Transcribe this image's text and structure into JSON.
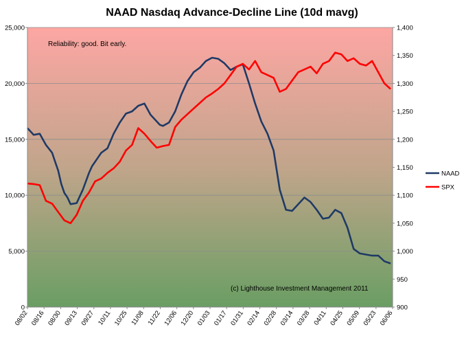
{
  "chart_data": {
    "type": "line",
    "title": "NAAD Nasdaq Advance-Decline Line (10d mavg)",
    "annotation_top": "Reliability: good. Bit early.",
    "annotation_bottom": "(c) Lighthouse Investment Management 2011",
    "x_tick_labels": [
      "08/02",
      "08/16",
      "08/30",
      "09/13",
      "09/27",
      "10/11",
      "10/25",
      "11/08",
      "11/22",
      "12/06",
      "12/20",
      "01/03",
      "01/17",
      "01/31",
      "02/14",
      "02/28",
      "03/14",
      "03/28",
      "04/11",
      "04/25",
      "05/09",
      "05/23",
      "06/06"
    ],
    "y_left": {
      "min": 0,
      "max": 25000,
      "ticks": [
        "0",
        "5,000",
        "10,000",
        "15,000",
        "20,000",
        "25,000"
      ],
      "tick_values": [
        0,
        5000,
        10000,
        15000,
        20000,
        25000
      ]
    },
    "y_right": {
      "min": 900,
      "max": 1400,
      "ticks": [
        "900",
        "950",
        "1,000",
        "1,050",
        "1,100",
        "1,150",
        "1,200",
        "1,250",
        "1,300",
        "1,350",
        "1,400"
      ],
      "tick_values": [
        900,
        950,
        1000,
        1050,
        1100,
        1150,
        1200,
        1250,
        1300,
        1350,
        1400
      ]
    },
    "background_gradient": {
      "top": "#fda6a3",
      "bottom": "#6a9e63"
    },
    "grid": true,
    "legend_position": "right",
    "series": [
      {
        "name": "NAAD",
        "axis": "left",
        "color": "#1f3a66",
        "points": [
          [
            0,
            16000
          ],
          [
            1,
            15400
          ],
          [
            2,
            15500
          ],
          [
            3,
            14500
          ],
          [
            4,
            13800
          ],
          [
            4.5,
            13000
          ],
          [
            5,
            12200
          ],
          [
            5.5,
            11000
          ],
          [
            6,
            10200
          ],
          [
            6.5,
            9800
          ],
          [
            7,
            9200
          ],
          [
            8,
            9300
          ],
          [
            9,
            10500
          ],
          [
            10,
            12000
          ],
          [
            10.5,
            12600
          ],
          [
            11,
            13000
          ],
          [
            11.5,
            13400
          ],
          [
            12,
            13800
          ],
          [
            13,
            14200
          ],
          [
            14,
            15500
          ],
          [
            15,
            16500
          ],
          [
            16,
            17300
          ],
          [
            17,
            17500
          ],
          [
            18,
            18000
          ],
          [
            19,
            18200
          ],
          [
            20,
            17200
          ],
          [
            21,
            16600
          ],
          [
            21.5,
            16300
          ],
          [
            22,
            16200
          ],
          [
            23,
            16500
          ],
          [
            24,
            17500
          ],
          [
            25,
            19000
          ],
          [
            26,
            20200
          ],
          [
            27,
            21000
          ],
          [
            28,
            21400
          ],
          [
            29,
            22000
          ],
          [
            30,
            22300
          ],
          [
            31,
            22200
          ],
          [
            32,
            21800
          ],
          [
            33,
            21200
          ],
          [
            34,
            21500
          ],
          [
            35,
            21700
          ],
          [
            36,
            20000
          ],
          [
            37,
            18200
          ],
          [
            38,
            16600
          ],
          [
            39,
            15500
          ],
          [
            40,
            14000
          ],
          [
            41,
            10500
          ],
          [
            42,
            8700
          ],
          [
            43,
            8600
          ],
          [
            44,
            9200
          ],
          [
            45,
            9800
          ],
          [
            46,
            9400
          ],
          [
            47,
            8700
          ],
          [
            48,
            7900
          ],
          [
            49,
            8000
          ],
          [
            50,
            8700
          ],
          [
            51,
            8400
          ],
          [
            52,
            7100
          ],
          [
            53,
            5200
          ],
          [
            54,
            4800
          ],
          [
            55,
            4700
          ],
          [
            56,
            4600
          ],
          [
            57,
            4600
          ],
          [
            58,
            4100
          ],
          [
            59,
            3900
          ]
        ]
      },
      {
        "name": "SPX",
        "axis": "right",
        "color": "#ff0000",
        "points": [
          [
            0,
            1121
          ],
          [
            1,
            1120
          ],
          [
            2,
            1118
          ],
          [
            3,
            1090
          ],
          [
            4,
            1085
          ],
          [
            5,
            1070
          ],
          [
            6,
            1055
          ],
          [
            7,
            1050
          ],
          [
            8,
            1065
          ],
          [
            9,
            1090
          ],
          [
            10,
            1105
          ],
          [
            11,
            1125
          ],
          [
            12,
            1130
          ],
          [
            13,
            1140
          ],
          [
            14,
            1148
          ],
          [
            15,
            1160
          ],
          [
            16,
            1180
          ],
          [
            17,
            1190
          ],
          [
            18,
            1220
          ],
          [
            19,
            1210
          ],
          [
            20,
            1197
          ],
          [
            21,
            1185
          ],
          [
            22,
            1188
          ],
          [
            23,
            1190
          ],
          [
            24,
            1222
          ],
          [
            25,
            1235
          ],
          [
            26,
            1245
          ],
          [
            27,
            1255
          ],
          [
            28,
            1265
          ],
          [
            29,
            1275
          ],
          [
            30,
            1282
          ],
          [
            31,
            1290
          ],
          [
            32,
            1300
          ],
          [
            33,
            1315
          ],
          [
            34,
            1330
          ],
          [
            35,
            1335
          ],
          [
            36,
            1325
          ],
          [
            37,
            1340
          ],
          [
            38,
            1320
          ],
          [
            39,
            1315
          ],
          [
            40,
            1310
          ],
          [
            41,
            1285
          ],
          [
            42,
            1290
          ],
          [
            43,
            1305
          ],
          [
            44,
            1320
          ],
          [
            45,
            1325
          ],
          [
            46,
            1330
          ],
          [
            47,
            1318
          ],
          [
            48,
            1335
          ],
          [
            49,
            1340
          ],
          [
            50,
            1355
          ],
          [
            51,
            1352
          ],
          [
            52,
            1340
          ],
          [
            53,
            1345
          ],
          [
            54,
            1335
          ],
          [
            55,
            1332
          ],
          [
            56,
            1340
          ],
          [
            57,
            1320
          ],
          [
            58,
            1300
          ],
          [
            59,
            1290
          ]
        ]
      }
    ]
  }
}
